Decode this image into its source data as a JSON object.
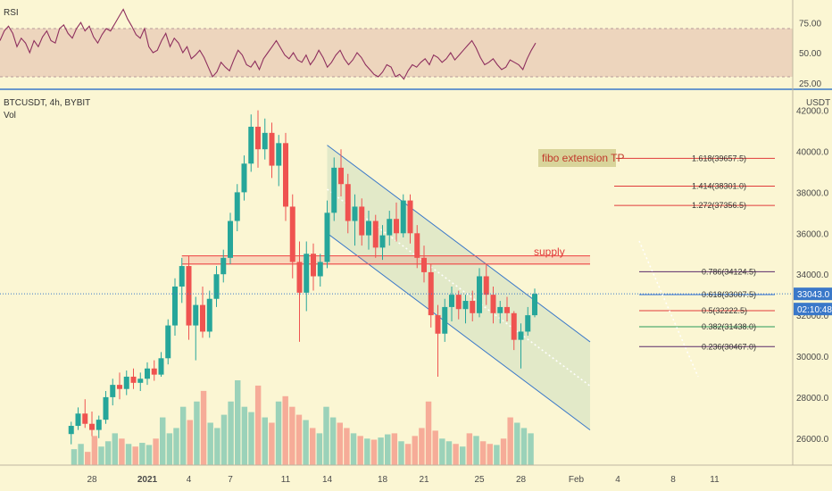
{
  "header": {
    "rsi_label": "RSI",
    "symbol": "BTCUSDT, 4h, BYBIT",
    "vol_label": "Vol",
    "currency": "USDT"
  },
  "rsi": {
    "ticks": [
      "75.00",
      "50.00",
      "25.00"
    ],
    "tick_values": [
      75,
      50,
      25
    ],
    "band": [
      30,
      70
    ],
    "values": [
      60,
      68,
      72,
      66,
      55,
      62,
      58,
      50,
      60,
      55,
      63,
      68,
      60,
      58,
      70,
      73,
      66,
      62,
      70,
      75,
      68,
      72,
      63,
      58,
      65,
      70,
      68,
      74,
      80,
      86,
      78,
      72,
      65,
      62,
      70,
      55,
      50,
      52,
      60,
      66,
      55,
      62,
      58,
      50,
      55,
      45,
      48,
      52,
      46,
      38,
      30,
      34,
      42,
      38,
      35,
      44,
      52,
      48,
      40,
      38,
      43,
      36,
      45,
      50,
      55,
      60,
      54,
      48,
      45,
      50,
      44,
      42,
      48,
      40,
      45,
      52,
      46,
      38,
      42,
      48,
      52,
      45,
      40,
      44,
      50,
      46,
      40,
      36,
      32,
      30,
      34,
      40,
      38,
      30,
      32,
      28,
      35,
      40,
      38,
      42,
      45,
      40,
      48,
      46,
      42,
      45,
      50,
      44,
      48,
      52,
      56,
      60,
      54,
      46,
      40,
      42,
      45,
      40,
      36,
      38,
      44,
      42,
      40,
      36,
      45,
      52,
      58
    ]
  },
  "price_axis": {
    "ticks": [
      "42000.0",
      "40000.0",
      "38000.0",
      "36000.0",
      "34000.0",
      "32000.0",
      "30000.0",
      "28000.0",
      "26000.0"
    ],
    "tick_values": [
      42000,
      40000,
      38000,
      36000,
      34000,
      32000,
      30000,
      28000,
      26000
    ],
    "current_price": "33043.0",
    "countdown": "02:10:48"
  },
  "time_axis": {
    "labels": [
      "28",
      "2021",
      "4",
      "7",
      "11",
      "14",
      "18",
      "21",
      "25",
      "28",
      "Feb",
      "4",
      "8",
      "11"
    ],
    "positions_day": [
      -4,
      0,
      3,
      6,
      10,
      13,
      17,
      20,
      24,
      27,
      31,
      34,
      38,
      41
    ]
  },
  "annotations": {
    "fibo_title": "fibo extension TP",
    "supply_label": "supply",
    "extension_levels": [
      {
        "label": "1.618(39657.5)",
        "price": 39657.5,
        "color": "#e03a3a"
      },
      {
        "label": "1.414(38301.0)",
        "price": 38301.0,
        "color": "#e03a3a"
      },
      {
        "label": "1.272(37356.5)",
        "price": 37356.5,
        "color": "#e03a3a"
      }
    ],
    "retracement_levels": [
      {
        "label": "0.786(34124.5)",
        "price": 34124.5,
        "color": "#5a2a6a"
      },
      {
        "label": "0.618(33007.5)",
        "price": 33007.5,
        "color": "#2f6fd0"
      },
      {
        "label": "0.5(32222.5)",
        "price": 32222.5,
        "color": "#e03a3a"
      },
      {
        "label": "0.382(31438.0)",
        "price": 31438.0,
        "color": "#2a9a5a"
      },
      {
        "label": "0.236(30467.0)",
        "price": 30467.0,
        "color": "#5a2a6a"
      }
    ]
  },
  "colors": {
    "up": "#26a69a",
    "down": "#ef5350",
    "rsi_line": "#8e2f5e",
    "rsi_band": "#e8c9b6",
    "channel_fill": "#dde6c6",
    "channel_line": "#3a78c9",
    "supply": "#ef5350",
    "price_badge": "#3a78c9"
  },
  "chart_data": {
    "type": "candlestick",
    "timeframe": "4h",
    "x_unit": "day",
    "ylim": [
      25000,
      42500
    ],
    "candles": [
      {
        "x": -5.5,
        "o": 26200,
        "h": 26800,
        "l": 25700,
        "c": 26600
      },
      {
        "x": -5.0,
        "o": 26600,
        "h": 27500,
        "l": 26400,
        "c": 27200
      },
      {
        "x": -4.5,
        "o": 27200,
        "h": 27900,
        "l": 26500,
        "c": 26700
      },
      {
        "x": -4.0,
        "o": 26700,
        "h": 27300,
        "l": 26100,
        "c": 26400
      },
      {
        "x": -3.5,
        "o": 26400,
        "h": 27100,
        "l": 26000,
        "c": 26900
      },
      {
        "x": -3.0,
        "o": 26900,
        "h": 28300,
        "l": 26700,
        "c": 28000
      },
      {
        "x": -2.5,
        "o": 28000,
        "h": 28900,
        "l": 27600,
        "c": 28600
      },
      {
        "x": -2.0,
        "o": 28600,
        "h": 29200,
        "l": 27900,
        "c": 28400
      },
      {
        "x": -1.5,
        "o": 28400,
        "h": 29300,
        "l": 28100,
        "c": 29000
      },
      {
        "x": -1.0,
        "o": 29000,
        "h": 29400,
        "l": 28400,
        "c": 28700
      },
      {
        "x": -0.5,
        "o": 28700,
        "h": 29200,
        "l": 28300,
        "c": 28900
      },
      {
        "x": 0.0,
        "o": 28900,
        "h": 29700,
        "l": 28600,
        "c": 29400
      },
      {
        "x": 0.5,
        "o": 29400,
        "h": 29800,
        "l": 28800,
        "c": 29100
      },
      {
        "x": 1.0,
        "o": 29100,
        "h": 30200,
        "l": 29000,
        "c": 29900
      },
      {
        "x": 1.5,
        "o": 29900,
        "h": 31800,
        "l": 29600,
        "c": 31500
      },
      {
        "x": 2.0,
        "o": 31500,
        "h": 33800,
        "l": 31000,
        "c": 33400
      },
      {
        "x": 2.5,
        "o": 33400,
        "h": 34800,
        "l": 32600,
        "c": 34400
      },
      {
        "x": 3.0,
        "o": 34400,
        "h": 34900,
        "l": 30800,
        "c": 31500
      },
      {
        "x": 3.5,
        "o": 31500,
        "h": 32900,
        "l": 29800,
        "c": 32500
      },
      {
        "x": 4.0,
        "o": 32500,
        "h": 33400,
        "l": 30900,
        "c": 31200
      },
      {
        "x": 4.5,
        "o": 31200,
        "h": 33200,
        "l": 30900,
        "c": 32800
      },
      {
        "x": 5.0,
        "o": 32800,
        "h": 34400,
        "l": 32400,
        "c": 34000
      },
      {
        "x": 5.5,
        "o": 34000,
        "h": 35200,
        "l": 33600,
        "c": 34800
      },
      {
        "x": 6.0,
        "o": 34800,
        "h": 37000,
        "l": 34500,
        "c": 36600
      },
      {
        "x": 6.5,
        "o": 36600,
        "h": 38400,
        "l": 36100,
        "c": 38000
      },
      {
        "x": 7.0,
        "o": 38000,
        "h": 39800,
        "l": 37600,
        "c": 39400
      },
      {
        "x": 7.5,
        "o": 39400,
        "h": 41800,
        "l": 39000,
        "c": 41200
      },
      {
        "x": 8.0,
        "o": 41200,
        "h": 42000,
        "l": 39200,
        "c": 40100
      },
      {
        "x": 8.5,
        "o": 40100,
        "h": 41600,
        "l": 39600,
        "c": 40900
      },
      {
        "x": 9.0,
        "o": 40900,
        "h": 41400,
        "l": 38700,
        "c": 39300
      },
      {
        "x": 9.5,
        "o": 39300,
        "h": 40800,
        "l": 38300,
        "c": 40400
      },
      {
        "x": 10.0,
        "o": 40400,
        "h": 40900,
        "l": 36600,
        "c": 37300
      },
      {
        "x": 10.5,
        "o": 37300,
        "h": 37900,
        "l": 33800,
        "c": 34600
      },
      {
        "x": 11.0,
        "o": 34600,
        "h": 35600,
        "l": 30700,
        "c": 33100
      },
      {
        "x": 11.5,
        "o": 33100,
        "h": 35600,
        "l": 32200,
        "c": 35000
      },
      {
        "x": 12.0,
        "o": 35000,
        "h": 35500,
        "l": 33200,
        "c": 33900
      },
      {
        "x": 12.5,
        "o": 33900,
        "h": 35000,
        "l": 33400,
        "c": 34600
      },
      {
        "x": 13.0,
        "o": 34600,
        "h": 37600,
        "l": 34300,
        "c": 37000
      },
      {
        "x": 13.5,
        "o": 37000,
        "h": 39700,
        "l": 36600,
        "c": 39200
      },
      {
        "x": 14.0,
        "o": 39200,
        "h": 40100,
        "l": 37800,
        "c": 38400
      },
      {
        "x": 14.5,
        "o": 38400,
        "h": 38900,
        "l": 36000,
        "c": 36600
      },
      {
        "x": 15.0,
        "o": 36600,
        "h": 37900,
        "l": 35400,
        "c": 37300
      },
      {
        "x": 15.5,
        "o": 37300,
        "h": 37700,
        "l": 35400,
        "c": 35900
      },
      {
        "x": 16.0,
        "o": 35900,
        "h": 37100,
        "l": 35200,
        "c": 36600
      },
      {
        "x": 16.5,
        "o": 36600,
        "h": 36900,
        "l": 34800,
        "c": 35300
      },
      {
        "x": 17.0,
        "o": 35300,
        "h": 36400,
        "l": 34700,
        "c": 35900
      },
      {
        "x": 17.5,
        "o": 35900,
        "h": 37100,
        "l": 35400,
        "c": 36700
      },
      {
        "x": 18.0,
        "o": 36700,
        "h": 37500,
        "l": 35600,
        "c": 36000
      },
      {
        "x": 18.5,
        "o": 36000,
        "h": 37900,
        "l": 35800,
        "c": 37600
      },
      {
        "x": 19.0,
        "o": 37600,
        "h": 37900,
        "l": 35500,
        "c": 36000
      },
      {
        "x": 19.5,
        "o": 36000,
        "h": 36400,
        "l": 34300,
        "c": 34800
      },
      {
        "x": 20.0,
        "o": 34800,
        "h": 35400,
        "l": 33600,
        "c": 34100
      },
      {
        "x": 20.5,
        "o": 34100,
        "h": 34500,
        "l": 31400,
        "c": 32000
      },
      {
        "x": 21.0,
        "o": 32000,
        "h": 32500,
        "l": 29000,
        "c": 31100
      },
      {
        "x": 21.5,
        "o": 31100,
        "h": 32800,
        "l": 30700,
        "c": 32400
      },
      {
        "x": 22.0,
        "o": 32400,
        "h": 33400,
        "l": 31700,
        "c": 33000
      },
      {
        "x": 22.5,
        "o": 33000,
        "h": 33200,
        "l": 31800,
        "c": 32300
      },
      {
        "x": 23.0,
        "o": 32300,
        "h": 33000,
        "l": 31600,
        "c": 32700
      },
      {
        "x": 23.5,
        "o": 32700,
        "h": 33200,
        "l": 31700,
        "c": 32100
      },
      {
        "x": 24.0,
        "o": 32100,
        "h": 34300,
        "l": 31900,
        "c": 33900
      },
      {
        "x": 24.5,
        "o": 33900,
        "h": 34500,
        "l": 32500,
        "c": 33000
      },
      {
        "x": 25.0,
        "o": 33000,
        "h": 33400,
        "l": 31600,
        "c": 32100
      },
      {
        "x": 25.5,
        "o": 32100,
        "h": 32700,
        "l": 31600,
        "c": 32400
      },
      {
        "x": 26.0,
        "o": 32400,
        "h": 32900,
        "l": 31700,
        "c": 32100
      },
      {
        "x": 26.5,
        "o": 32100,
        "h": 32200,
        "l": 30300,
        "c": 30800
      },
      {
        "x": 27.0,
        "o": 30800,
        "h": 31600,
        "l": 29400,
        "c": 31200
      },
      {
        "x": 27.5,
        "o": 31200,
        "h": 32400,
        "l": 31000,
        "c": 32000
      },
      {
        "x": 28.0,
        "o": 32000,
        "h": 33300,
        "l": 31900,
        "c": 33043
      }
    ],
    "volume": [
      30,
      40,
      25,
      55,
      35,
      45,
      60,
      50,
      40,
      35,
      42,
      38,
      50,
      90,
      60,
      70,
      110,
      85,
      120,
      140,
      80,
      70,
      95,
      120,
      160,
      110,
      100,
      150,
      90,
      80,
      120,
      130,
      110,
      95,
      85,
      70,
      60,
      110,
      90,
      80,
      70,
      60,
      55,
      50,
      48,
      52,
      58,
      60,
      45,
      40,
      55,
      70,
      120,
      65,
      50,
      45,
      40,
      35,
      60,
      55,
      45,
      40,
      38,
      50,
      90,
      80,
      70,
      60
    ],
    "channel": {
      "p1": [
        13.0,
        40300
      ],
      "p2": [
        32.0,
        30700
      ],
      "offset": -4300
    },
    "supply_zone": [
      34700,
      34900
    ],
    "supply_lines": [
      34900,
      34500
    ],
    "supply_range_x": [
      2.5,
      32.0
    ]
  }
}
